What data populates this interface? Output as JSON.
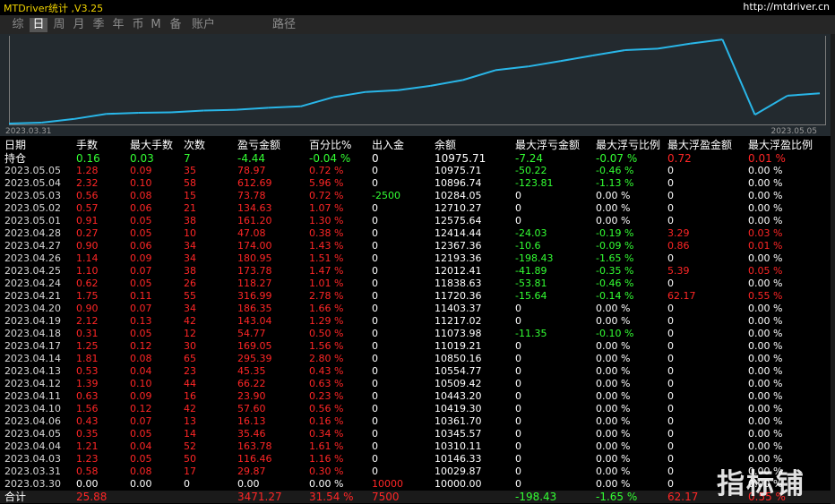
{
  "app": {
    "title": "MTDriver统计 ,V3.25",
    "url": "http://mtdriver.cn"
  },
  "tabs": [
    {
      "label": "综",
      "active": false
    },
    {
      "label": "日",
      "active": true
    },
    {
      "label": "周",
      "active": false
    },
    {
      "label": "月",
      "active": false
    },
    {
      "label": "季",
      "active": false
    },
    {
      "label": "年",
      "active": false
    },
    {
      "label": "币",
      "active": false
    },
    {
      "label": "M",
      "active": false
    },
    {
      "label": "备",
      "active": false
    },
    {
      "label": "账户",
      "active": false
    },
    {
      "label": "路径",
      "active": false
    }
  ],
  "chart_data": {
    "type": "line",
    "x_start_label": "2023.03.31",
    "x_end_label": "2023.05.05",
    "series_color": "#29b6e8",
    "x": [
      "2023.03.30",
      "2023.03.31",
      "2023.04.03",
      "2023.04.04",
      "2023.04.05",
      "2023.04.06",
      "2023.04.10",
      "2023.04.11",
      "2023.04.12",
      "2023.04.13",
      "2023.04.14",
      "2023.04.17",
      "2023.04.18",
      "2023.04.19",
      "2023.04.20",
      "2023.04.21",
      "2023.04.24",
      "2023.04.25",
      "2023.04.26",
      "2023.04.27",
      "2023.04.28",
      "2023.05.01",
      "2023.05.02",
      "2023.05.03",
      "2023.05.04",
      "2023.05.05"
    ],
    "values": [
      10000.0,
      10029.87,
      10146.33,
      10310.11,
      10345.57,
      10361.7,
      10419.3,
      10443.2,
      10509.42,
      10554.77,
      10850.16,
      11019.21,
      11073.98,
      11217.02,
      11403.37,
      11720.36,
      11838.63,
      12012.41,
      12193.36,
      12367.36,
      12414.44,
      12575.64,
      12710.27,
      10284.05,
      10896.74,
      10975.71
    ],
    "ylim": [
      10000,
      12800
    ]
  },
  "table": {
    "headers": [
      "日期",
      "手数",
      "最大手数",
      "次数",
      "盈亏金额",
      "百分比%",
      "出入金",
      "余额",
      "最大浮亏金额",
      "最大浮亏比例",
      "最大浮盈金额",
      "最大浮盈比例"
    ],
    "holding": {
      "cells": [
        "持仓",
        "0.16",
        "0.03",
        "7",
        "-4.44",
        "-0.04 %",
        "0",
        "10975.71",
        "-7.24",
        "-0.07 %",
        "0.72",
        "0.01 %"
      ],
      "colors": [
        "white",
        "green",
        "green",
        "green",
        "green",
        "green",
        "white",
        "white",
        "green",
        "green",
        "red",
        "red"
      ]
    },
    "rows": [
      {
        "cells": [
          "2023.05.05",
          "1.28",
          "0.09",
          "35",
          "78.97",
          "0.72 %",
          "0",
          "10975.71",
          "-50.22",
          "-0.46 %",
          "0",
          "0.00 %"
        ],
        "colors": [
          "dt",
          "red",
          "red",
          "red",
          "red",
          "red",
          "white",
          "white",
          "green",
          "green",
          "white",
          "white"
        ]
      },
      {
        "cells": [
          "2023.05.04",
          "2.32",
          "0.10",
          "58",
          "612.69",
          "5.96 %",
          "0",
          "10896.74",
          "-123.81",
          "-1.13 %",
          "0",
          "0.00 %"
        ],
        "colors": [
          "dt",
          "red",
          "red",
          "red",
          "red",
          "red",
          "white",
          "white",
          "green",
          "green",
          "white",
          "white"
        ]
      },
      {
        "cells": [
          "2023.05.03",
          "0.56",
          "0.08",
          "15",
          "73.78",
          "0.72 %",
          "-2500",
          "10284.05",
          "0",
          "0.00 %",
          "0",
          "0.00 %"
        ],
        "colors": [
          "dt",
          "red",
          "red",
          "red",
          "red",
          "red",
          "green",
          "white",
          "white",
          "white",
          "white",
          "white"
        ]
      },
      {
        "cells": [
          "2023.05.02",
          "0.57",
          "0.06",
          "21",
          "134.63",
          "1.07 %",
          "0",
          "12710.27",
          "0",
          "0.00 %",
          "0",
          "0.00 %"
        ],
        "colors": [
          "dt",
          "red",
          "red",
          "red",
          "red",
          "red",
          "white",
          "white",
          "white",
          "white",
          "white",
          "white"
        ]
      },
      {
        "cells": [
          "2023.05.01",
          "0.91",
          "0.05",
          "38",
          "161.20",
          "1.30 %",
          "0",
          "12575.64",
          "0",
          "0.00 %",
          "0",
          "0.00 %"
        ],
        "colors": [
          "dt",
          "red",
          "red",
          "red",
          "red",
          "red",
          "white",
          "white",
          "white",
          "white",
          "white",
          "white"
        ]
      },
      {
        "cells": [
          "2023.04.28",
          "0.27",
          "0.05",
          "10",
          "47.08",
          "0.38 %",
          "0",
          "12414.44",
          "-24.03",
          "-0.19 %",
          "3.29",
          "0.03 %"
        ],
        "colors": [
          "dt",
          "red",
          "red",
          "red",
          "red",
          "red",
          "white",
          "white",
          "green",
          "green",
          "red",
          "red"
        ]
      },
      {
        "cells": [
          "2023.04.27",
          "0.90",
          "0.06",
          "34",
          "174.00",
          "1.43 %",
          "0",
          "12367.36",
          "-10.6",
          "-0.09 %",
          "0.86",
          "0.01 %"
        ],
        "colors": [
          "dt",
          "red",
          "red",
          "red",
          "red",
          "red",
          "white",
          "white",
          "green",
          "green",
          "red",
          "red"
        ]
      },
      {
        "cells": [
          "2023.04.26",
          "1.14",
          "0.09",
          "34",
          "180.95",
          "1.51 %",
          "0",
          "12193.36",
          "-198.43",
          "-1.65 %",
          "0",
          "0.00 %"
        ],
        "colors": [
          "dt",
          "red",
          "red",
          "red",
          "red",
          "red",
          "white",
          "white",
          "green",
          "green",
          "white",
          "white"
        ]
      },
      {
        "cells": [
          "2023.04.25",
          "1.10",
          "0.07",
          "38",
          "173.78",
          "1.47 %",
          "0",
          "12012.41",
          "-41.89",
          "-0.35 %",
          "5.39",
          "0.05 %"
        ],
        "colors": [
          "dt",
          "red",
          "red",
          "red",
          "red",
          "red",
          "white",
          "white",
          "green",
          "green",
          "red",
          "red"
        ]
      },
      {
        "cells": [
          "2023.04.24",
          "0.62",
          "0.05",
          "26",
          "118.27",
          "1.01 %",
          "0",
          "11838.63",
          "-53.81",
          "-0.46 %",
          "0",
          "0.00 %"
        ],
        "colors": [
          "dt",
          "red",
          "red",
          "red",
          "red",
          "red",
          "white",
          "white",
          "green",
          "green",
          "white",
          "white"
        ]
      },
      {
        "cells": [
          "2023.04.21",
          "1.75",
          "0.11",
          "55",
          "316.99",
          "2.78 %",
          "0",
          "11720.36",
          "-15.64",
          "-0.14 %",
          "62.17",
          "0.55 %"
        ],
        "colors": [
          "dt",
          "red",
          "red",
          "red",
          "red",
          "red",
          "white",
          "white",
          "green",
          "green",
          "red",
          "red"
        ]
      },
      {
        "cells": [
          "2023.04.20",
          "0.90",
          "0.07",
          "34",
          "186.35",
          "1.66 %",
          "0",
          "11403.37",
          "0",
          "0.00 %",
          "0",
          "0.00 %"
        ],
        "colors": [
          "dt",
          "red",
          "red",
          "red",
          "red",
          "red",
          "white",
          "white",
          "white",
          "white",
          "white",
          "white"
        ]
      },
      {
        "cells": [
          "2023.04.19",
          "2.12",
          "0.13",
          "42",
          "143.04",
          "1.29 %",
          "0",
          "11217.02",
          "0",
          "0.00 %",
          "0",
          "0.00 %"
        ],
        "colors": [
          "dt",
          "red",
          "red",
          "red",
          "red",
          "red",
          "white",
          "white",
          "white",
          "white",
          "white",
          "white"
        ]
      },
      {
        "cells": [
          "2023.04.18",
          "0.31",
          "0.05",
          "12",
          "54.77",
          "0.50 %",
          "0",
          "11073.98",
          "-11.35",
          "-0.10 %",
          "0",
          "0.00 %"
        ],
        "colors": [
          "dt",
          "red",
          "red",
          "red",
          "red",
          "red",
          "white",
          "white",
          "green",
          "green",
          "white",
          "white"
        ]
      },
      {
        "cells": [
          "2023.04.17",
          "1.25",
          "0.12",
          "30",
          "169.05",
          "1.56 %",
          "0",
          "11019.21",
          "0",
          "0.00 %",
          "0",
          "0.00 %"
        ],
        "colors": [
          "dt",
          "red",
          "red",
          "red",
          "red",
          "red",
          "white",
          "white",
          "white",
          "white",
          "white",
          "white"
        ]
      },
      {
        "cells": [
          "2023.04.14",
          "1.81",
          "0.08",
          "65",
          "295.39",
          "2.80 %",
          "0",
          "10850.16",
          "0",
          "0.00 %",
          "0",
          "0.00 %"
        ],
        "colors": [
          "dt",
          "red",
          "red",
          "red",
          "red",
          "red",
          "white",
          "white",
          "white",
          "white",
          "white",
          "white"
        ]
      },
      {
        "cells": [
          "2023.04.13",
          "0.53",
          "0.04",
          "23",
          "45.35",
          "0.43 %",
          "0",
          "10554.77",
          "0",
          "0.00 %",
          "0",
          "0.00 %"
        ],
        "colors": [
          "dt",
          "red",
          "red",
          "red",
          "red",
          "red",
          "white",
          "white",
          "white",
          "white",
          "white",
          "white"
        ]
      },
      {
        "cells": [
          "2023.04.12",
          "1.39",
          "0.10",
          "44",
          "66.22",
          "0.63 %",
          "0",
          "10509.42",
          "0",
          "0.00 %",
          "0",
          "0.00 %"
        ],
        "colors": [
          "dt",
          "red",
          "red",
          "red",
          "red",
          "red",
          "white",
          "white",
          "white",
          "white",
          "white",
          "white"
        ]
      },
      {
        "cells": [
          "2023.04.11",
          "0.63",
          "0.09",
          "16",
          "23.90",
          "0.23 %",
          "0",
          "10443.20",
          "0",
          "0.00 %",
          "0",
          "0.00 %"
        ],
        "colors": [
          "dt",
          "red",
          "red",
          "red",
          "red",
          "red",
          "white",
          "white",
          "white",
          "white",
          "white",
          "white"
        ]
      },
      {
        "cells": [
          "2023.04.10",
          "1.56",
          "0.12",
          "42",
          "57.60",
          "0.56 %",
          "0",
          "10419.30",
          "0",
          "0.00 %",
          "0",
          "0.00 %"
        ],
        "colors": [
          "dt",
          "red",
          "red",
          "red",
          "red",
          "red",
          "white",
          "white",
          "white",
          "white",
          "white",
          "white"
        ]
      },
      {
        "cells": [
          "2023.04.06",
          "0.43",
          "0.07",
          "13",
          "16.13",
          "0.16 %",
          "0",
          "10361.70",
          "0",
          "0.00 %",
          "0",
          "0.00 %"
        ],
        "colors": [
          "dt",
          "red",
          "red",
          "red",
          "red",
          "red",
          "white",
          "white",
          "white",
          "white",
          "white",
          "white"
        ]
      },
      {
        "cells": [
          "2023.04.05",
          "0.35",
          "0.05",
          "14",
          "35.46",
          "0.34 %",
          "0",
          "10345.57",
          "0",
          "0.00 %",
          "0",
          "0.00 %"
        ],
        "colors": [
          "dt",
          "red",
          "red",
          "red",
          "red",
          "red",
          "white",
          "white",
          "white",
          "white",
          "white",
          "white"
        ]
      },
      {
        "cells": [
          "2023.04.04",
          "1.21",
          "0.04",
          "52",
          "163.78",
          "1.61 %",
          "0",
          "10310.11",
          "0",
          "0.00 %",
          "0",
          "0.00 %"
        ],
        "colors": [
          "dt",
          "red",
          "red",
          "red",
          "red",
          "red",
          "white",
          "white",
          "white",
          "white",
          "white",
          "white"
        ]
      },
      {
        "cells": [
          "2023.04.03",
          "1.23",
          "0.05",
          "50",
          "116.46",
          "1.16 %",
          "0",
          "10146.33",
          "0",
          "0.00 %",
          "0",
          "0.00 %"
        ],
        "colors": [
          "dt",
          "red",
          "red",
          "red",
          "red",
          "red",
          "white",
          "white",
          "white",
          "white",
          "white",
          "white"
        ]
      },
      {
        "cells": [
          "2023.03.31",
          "0.58",
          "0.08",
          "17",
          "29.87",
          "0.30 %",
          "0",
          "10029.87",
          "0",
          "0.00 %",
          "0",
          "0.00 %"
        ],
        "colors": [
          "dt",
          "red",
          "red",
          "red",
          "red",
          "red",
          "white",
          "white",
          "white",
          "white",
          "white",
          "white"
        ]
      },
      {
        "cells": [
          "2023.03.30",
          "0.00",
          "0.00",
          "0",
          "0.00",
          "0.00 %",
          "10000",
          "10000.00",
          "0",
          "0.00 %",
          "0",
          "0.00 %"
        ],
        "colors": [
          "dt",
          "white",
          "white",
          "white",
          "white",
          "white",
          "red",
          "white",
          "white",
          "white",
          "white",
          "white"
        ]
      }
    ],
    "total": {
      "cells": [
        "合计",
        "25.88",
        "",
        "",
        "3471.27",
        "31.54 %",
        "7500",
        "",
        "-198.43",
        "-1.65 %",
        "62.17",
        "0.55 %"
      ],
      "colors": [
        "white",
        "red",
        "white",
        "white",
        "red",
        "red",
        "red",
        "white",
        "green",
        "green",
        "red",
        "red"
      ]
    }
  },
  "watermark": {
    "text": "指标铺"
  }
}
